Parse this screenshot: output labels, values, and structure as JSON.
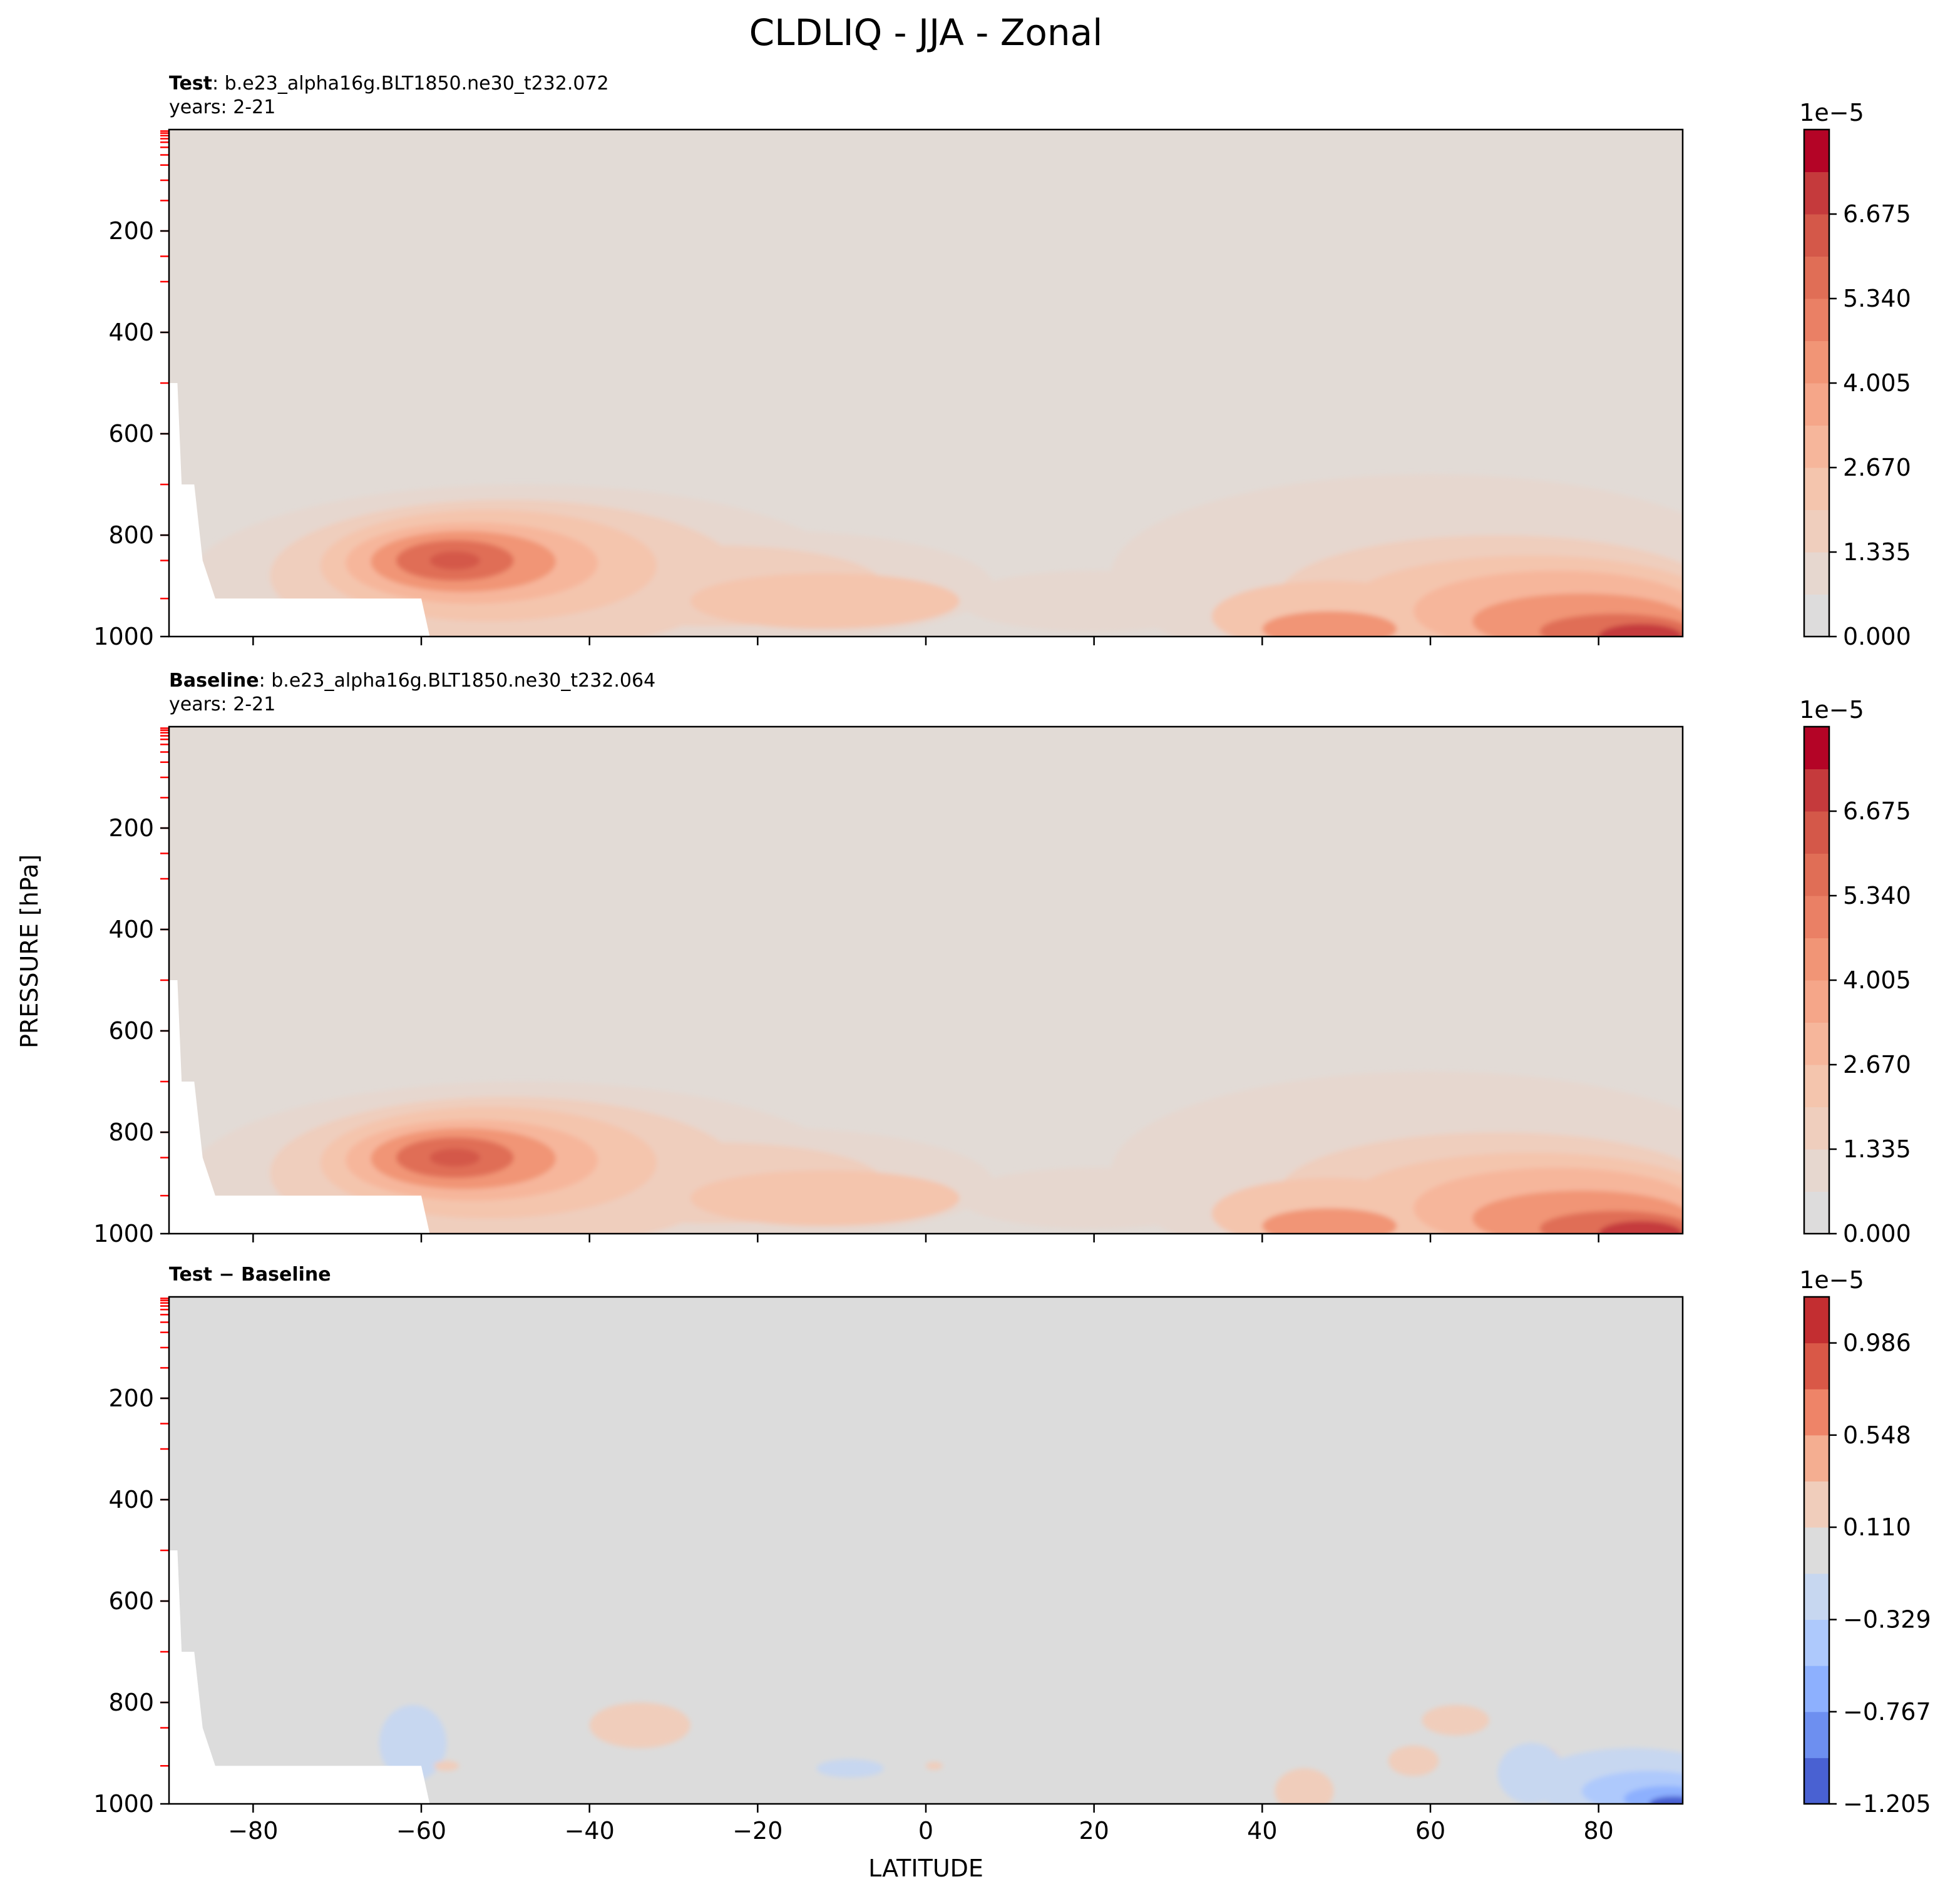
{
  "figure": {
    "title": "CLDLIQ - JJA - Zonal",
    "shared_ylabel": "PRESSURE [hPa]",
    "shared_xlabel": "LATITUDE"
  },
  "colors": {
    "background_field": "#e2dbd6",
    "diff_background": "#dcdcdc",
    "axis": "#000000",
    "level_tick": "#ff0000",
    "cmap_seq": [
      "#dddcdc",
      "#e6d7cf",
      "#efcebd",
      "#f4c5ad",
      "#f6b69b",
      "#f5a689",
      "#f19576",
      "#ea8065",
      "#e06e56",
      "#d45849",
      "#c53a3c",
      "#b40426"
    ],
    "cmap_div": [
      "#4961d2",
      "#6d8ff0",
      "#8db0fe",
      "#aec9fc",
      "#c7d7f0",
      "#dcdcdc",
      "#f0cdbb",
      "#f4ae91",
      "#ee8468",
      "#d95847",
      "#c32e31"
    ]
  },
  "chart_data": [
    {
      "type": "contourf",
      "panel": "test",
      "title_bold": "Test",
      "title_rest": ": b.e23_alpha16g.BLT1850.ne30_t232.072",
      "years": "years: 2-21",
      "xlim": [
        -90,
        90
      ],
      "ylim": [
        1000,
        0
      ],
      "xticks": [
        "−80",
        "−60",
        "−40",
        "−20",
        "0",
        "20",
        "40",
        "60",
        "80"
      ],
      "yticks": [
        "200",
        "400",
        "600",
        "800",
        "1000"
      ],
      "show_xticklabels": false,
      "colorbar": {
        "exponent": "1e−5",
        "ticklabels": [
          "0.000",
          "1.335",
          "2.670",
          "4.005",
          "5.340",
          "6.675"
        ],
        "levels": [
          0,
          0.6675,
          1.335,
          2.0025,
          2.67,
          3.3375,
          4.005,
          4.6725,
          5.34,
          6.0075,
          6.675,
          7.3425,
          8.01
        ]
      },
      "features": [
        {
          "name": "southern-ocean-lowcloud-max",
          "lat": -56,
          "plev": 850,
          "peak_1e-5": 6.2
        },
        {
          "name": "tropical-boundary-layer",
          "lat": -2,
          "plev": 930,
          "peak_1e-5": 2.8
        },
        {
          "name": "arctic-lowcloud-max",
          "lat": 82,
          "plev": 990,
          "peak_1e-5": 6.4
        },
        {
          "name": "nh-midlat-lowcloud",
          "lat": 48,
          "plev": 980,
          "peak_1e-5": 4.4
        }
      ]
    },
    {
      "type": "contourf",
      "panel": "baseline",
      "title_bold": "Baseline",
      "title_rest": ": b.e23_alpha16g.BLT1850.ne30_t232.064",
      "years": "years: 2-21",
      "xlim": [
        -90,
        90
      ],
      "ylim": [
        1000,
        0
      ],
      "xticks": [
        "−80",
        "−60",
        "−40",
        "−20",
        "0",
        "20",
        "40",
        "60",
        "80"
      ],
      "yticks": [
        "200",
        "400",
        "600",
        "800",
        "1000"
      ],
      "show_xticklabels": false,
      "colorbar": {
        "exponent": "1e−5",
        "ticklabels": [
          "0.000",
          "1.335",
          "2.670",
          "4.005",
          "5.340",
          "6.675"
        ],
        "levels": [
          0,
          0.6675,
          1.335,
          2.0025,
          2.67,
          3.3375,
          4.005,
          4.6725,
          5.34,
          6.0075,
          6.675,
          7.3425,
          8.01
        ]
      },
      "features": [
        {
          "name": "southern-ocean-lowcloud-max",
          "lat": -56,
          "plev": 850,
          "peak_1e-5": 6.3
        },
        {
          "name": "tropical-boundary-layer",
          "lat": -2,
          "plev": 930,
          "peak_1e-5": 2.8
        },
        {
          "name": "arctic-lowcloud-max",
          "lat": 84,
          "plev": 990,
          "peak_1e-5": 6.6
        },
        {
          "name": "nh-midlat-lowcloud",
          "lat": 48,
          "plev": 980,
          "peak_1e-5": 4.4
        }
      ]
    },
    {
      "type": "contourf",
      "panel": "difference",
      "title_bold": "Test − Baseline",
      "xlim": [
        -90,
        90
      ],
      "ylim": [
        1000,
        0
      ],
      "xticks": [
        "−80",
        "−60",
        "−40",
        "−20",
        "0",
        "20",
        "40",
        "60",
        "80"
      ],
      "yticks": [
        "200",
        "400",
        "600",
        "800",
        "1000"
      ],
      "show_xticklabels": true,
      "colorbar": {
        "exponent": "1e−5",
        "ticklabels": [
          "−1.205",
          "−0.767",
          "−0.329",
          "0.110",
          "0.548",
          "0.986"
        ],
        "levels": [
          -1.205,
          -0.986,
          -0.767,
          -0.548,
          -0.329,
          -0.11,
          0.11,
          0.329,
          0.548,
          0.767,
          0.986,
          1.205
        ]
      },
      "features": [
        {
          "name": "antarctic-coast-negative",
          "lat": -61,
          "plev": 870,
          "value_1e-5": -0.2
        },
        {
          "name": "southern-midlat-positive",
          "lat": -34,
          "plev": 835,
          "value_1e-5": 0.2
        },
        {
          "name": "tropical-negative",
          "lat": -9,
          "plev": 930,
          "value_1e-5": -0.2
        },
        {
          "name": "arctic-surface-negative",
          "lat": 88,
          "plev": 990,
          "value_1e-5": -1.1
        }
      ]
    }
  ]
}
